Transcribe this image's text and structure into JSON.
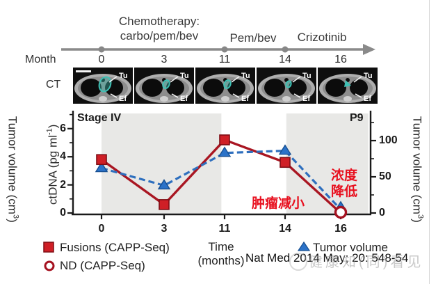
{
  "timeline": {
    "chemo_line1": "Chemotherapy:",
    "chemo_line2": "carbo/pem/bev",
    "phase2": "Pem/bev",
    "phase3": "Crizotinib",
    "month_label": "Month",
    "months": [
      "0",
      "3",
      "11",
      "14",
      "16"
    ],
    "dot_month_indexes": [
      0,
      2,
      3
    ],
    "arrow_color": "#8a8a8a"
  },
  "ct": {
    "row_label": "CT",
    "scans": [
      {
        "tu": "Tu",
        "ef": "Ef",
        "tumor": "large",
        "scalebar": true
      },
      {
        "tu": "Tu",
        "ef": "Ef",
        "tumor": "small",
        "scalebar": false
      },
      {
        "tu": "Tu",
        "ef": "Ef",
        "tumor": "small",
        "scalebar": false
      },
      {
        "tu": "Tu",
        "ef": "Ef",
        "tumor": "tiny",
        "scalebar": false
      },
      {
        "tu": "Tu",
        "ef": "Ef",
        "tumor": "arrow",
        "scalebar": false
      }
    ]
  },
  "chart_data": {
    "type": "line",
    "panel_label_left": "Stage IV",
    "panel_label_right": "P9",
    "x_categories": [
      "0",
      "3",
      "11",
      "14",
      "16"
    ],
    "xlabel_line1": "Time",
    "xlabel_line2": "(months)",
    "ylabel_left_main": "ctDNA (pg ml",
    "ylabel_left_sup": "-1",
    "ylabel_left_close": ")",
    "ylabel_right_main": "Tumor volume (cm",
    "ylabel_right_sup": "3",
    "ylabel_right_close": ")",
    "yleft": {
      "ticks": [
        0,
        2,
        4,
        6
      ],
      "minor": [
        1,
        3,
        5,
        7
      ],
      "range": [
        0,
        7.2
      ]
    },
    "yright": {
      "ticks": [
        0,
        50,
        100
      ],
      "minor": [
        25,
        75,
        125
      ],
      "range": [
        0,
        140
      ]
    },
    "shaded_spans_category_idx": [
      [
        0,
        2
      ],
      [
        3,
        4.45
      ]
    ],
    "shade_color": "#e8e8e6",
    "series": [
      {
        "name": "Fusions (CAPP-Seq)",
        "axis": "left",
        "style": "solid",
        "marker": "square",
        "line_color": "#a91622",
        "marker_fill": "#cf1f26",
        "marker_stroke": "#7e0d14",
        "values": [
          3.8,
          0.6,
          5.2,
          3.6,
          0
        ],
        "nd_index": 4
      },
      {
        "name": "Tumor volume",
        "axis": "right",
        "style": "dashed",
        "marker": "triangle",
        "line_color": "#2e6fbe",
        "marker_fill": "#2b72c8",
        "marker_stroke": "#174f91",
        "values": [
          62,
          38,
          83,
          86,
          5
        ]
      }
    ]
  },
  "annotations": {
    "tumor_shrink": "肿瘤减小",
    "conc_line1": "浓度",
    "conc_line2": "降低"
  },
  "legend": {
    "fusions": "Fusions (CAPP-Seq)",
    "nd": "ND (CAPP-Seq)",
    "tumor_volume": "Tumor volume"
  },
  "side_panel_left_label_main": "Tumor volume (cm",
  "side_panel_left_label_sup": "3",
  "side_panel_left_label_close": ")",
  "citation": "Nat Med 2014 May; 20: 548-54",
  "watermark_text": "健康知(同)看见"
}
